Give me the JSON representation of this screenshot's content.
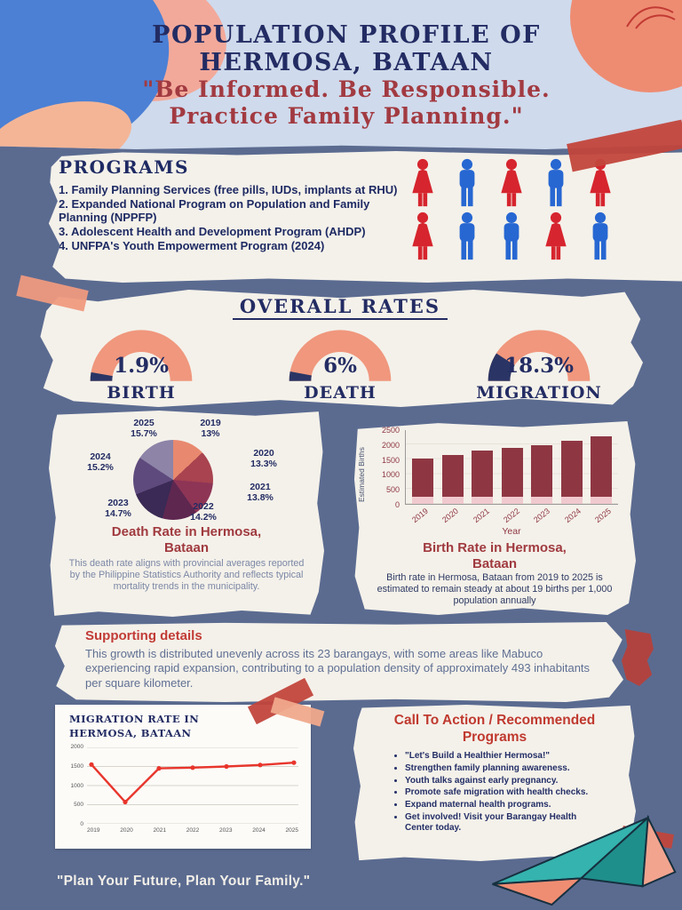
{
  "colors": {
    "page_bg": "#5b6b90",
    "header_bg": "#cfdaec",
    "paper": "#f4f1ea",
    "navy": "#232c63",
    "maroon": "#a03a3f",
    "red_accent": "#c0392f",
    "person_red": "#d6252e",
    "person_blue": "#2767d2",
    "gauge_fill": "#f0977d",
    "gauge_dark": "#2a3565",
    "line_red": "#e8352c",
    "bar_dark": "#8e3743",
    "bar_light": "#f0c9ce"
  },
  "header": {
    "title": "POPULATION PROFILE OF HERMOSA, BATAAN",
    "subtitle": "\"Be Informed. Be Responsible. Practice Family Planning.\""
  },
  "programs": {
    "heading": "PROGRAMS",
    "items": [
      "1. Family Planning Services (free pills, IUDs, implants at RHU)",
      "2. Expanded National Program on Population and Family Planning (NPPFP)",
      "3. Adolescent Health and Development Program (AHDP)",
      "4. UNFPA's Youth Empowerment Program (2024)"
    ],
    "icons": [
      {
        "shape": "female",
        "color": "red"
      },
      {
        "shape": "male",
        "color": "blue"
      },
      {
        "shape": "female",
        "color": "red"
      },
      {
        "shape": "male",
        "color": "blue"
      },
      {
        "shape": "female",
        "color": "red"
      },
      {
        "shape": "female",
        "color": "red"
      },
      {
        "shape": "male",
        "color": "blue"
      },
      {
        "shape": "male",
        "color": "blue"
      },
      {
        "shape": "female",
        "color": "red"
      },
      {
        "shape": "male",
        "color": "blue"
      }
    ]
  },
  "overall_rates": {
    "heading": "OVERALL RATES"
  },
  "death_card": {
    "description": "This death rate aligns with provincial averages reported by the Philippine Statistics Authority and reflects typical mortality trends in the municipality."
  },
  "birth_card": {
    "description": "Birth rate in Hermosa, Bataan from 2019 to 2025 is estimated to remain steady at about 19 births per 1,000 population annually"
  },
  "supporting": {
    "heading": "Supporting details",
    "text": "This growth is distributed unevenly across its 23 barangays, with some areas like Mabuco experiencing rapid expansion, contributing to a population density of approximately 493 inhabitants per square kilometer."
  },
  "cta": {
    "heading": "Call To Action / Recommended Programs",
    "items": [
      "\"Let's Build a Healthier Hermosa!\"",
      "Strengthen family planning awareness.",
      "Youth talks against early pregnancy.",
      "Promote safe migration with health checks.",
      "Expand maternal health programs.",
      "Get involved! Visit your Barangay Health Center today."
    ]
  },
  "footer": {
    "tagline": "\"Plan Your Future, Plan Your Family.\""
  },
  "chart_data": [
    {
      "type": "pie",
      "title": "Death Rate in Hermosa, Bataan",
      "start_angle_deg": 0,
      "direction": "clockwise",
      "slices": [
        {
          "year": "2019",
          "pct": "13%",
          "value": 13,
          "color": "#e8896f"
        },
        {
          "year": "2020",
          "pct": "13.3%",
          "value": 13.3,
          "color": "#a8434f"
        },
        {
          "year": "2021",
          "pct": "13.8%",
          "value": 13.8,
          "color": "#8e3556"
        },
        {
          "year": "2022",
          "pct": "14.2%",
          "value": 14.2,
          "color": "#5e2750"
        },
        {
          "year": "2023",
          "pct": "14.7%",
          "value": 14.7,
          "color": "#3a2a55"
        },
        {
          "year": "2024",
          "pct": "15.2%",
          "value": 15.2,
          "color": "#5f4a7d"
        },
        {
          "year": "2025",
          "pct": "15.7%",
          "value": 15.7,
          "color": "#8d84a8"
        }
      ]
    },
    {
      "type": "bar",
      "title": "Birth Rate in Hermosa, Bataan",
      "categories": [
        "2019",
        "2020",
        "2021",
        "2022",
        "2023",
        "2024",
        "2025"
      ],
      "values": [
        1550,
        1650,
        1800,
        1900,
        2000,
        2150,
        2300
      ],
      "base_segment": 250,
      "xlabel": "Year",
      "ylabel": "Estimated Births",
      "yticks": [
        0,
        500,
        1000,
        1500,
        2000,
        2500
      ],
      "ylim": [
        0,
        2500
      ],
      "grid": true
    },
    {
      "type": "line",
      "title": "MIGRATION RATE IN HERMOSA, BATAAN",
      "x": [
        "2019",
        "2020",
        "2021",
        "2022",
        "2023",
        "2024",
        "2025"
      ],
      "values": [
        1550,
        570,
        1450,
        1470,
        1500,
        1540,
        1600
      ],
      "yticks": [
        0,
        500,
        1000,
        1500,
        2000
      ],
      "ylim": [
        0,
        2000
      ],
      "grid": true
    },
    {
      "type": "gauge",
      "title": "Overall Rates",
      "unit": "%",
      "series": [
        {
          "label": "BIRTH",
          "value": 1.9,
          "display": "1.9%"
        },
        {
          "label": "DEATH",
          "value": 6,
          "display": "6%"
        },
        {
          "label": "MIGRATION",
          "value": 18.3,
          "display": "18.3%"
        }
      ]
    }
  ]
}
